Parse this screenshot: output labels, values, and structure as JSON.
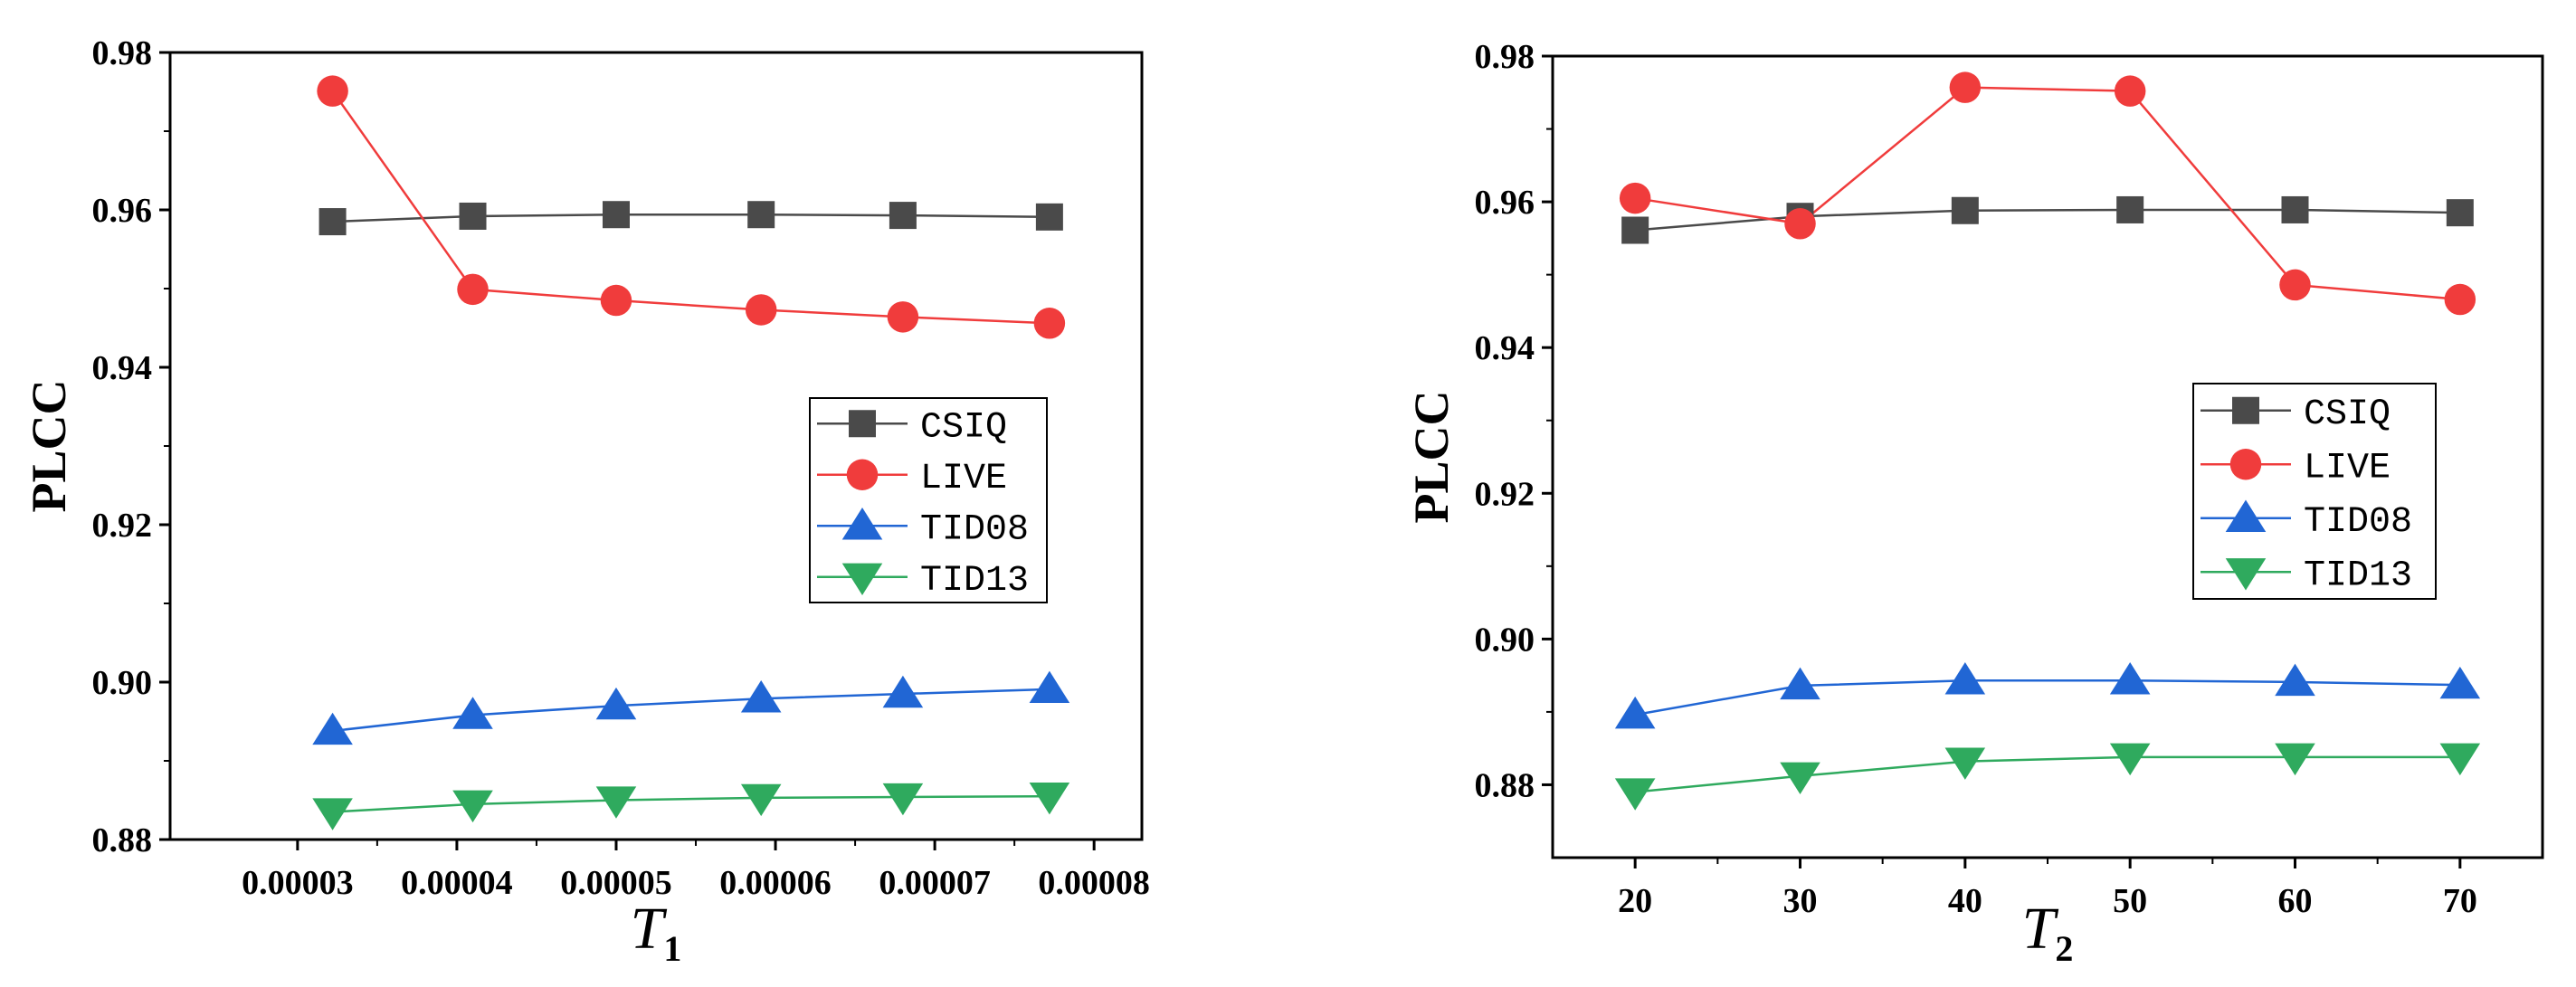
{
  "colors": {
    "CSIQ": "#4a4a4a",
    "LIVE": "#f03c3c",
    "TID08": "#2166d4",
    "TID13": "#2faa5e"
  },
  "chart_data": [
    {
      "type": "line",
      "title": "",
      "xlabel": "T",
      "xlabel_sub": "1",
      "ylabel": "PLCC",
      "xlim": [
        2.2e-05,
        8.3e-05
      ],
      "ylim": [
        0.88,
        0.98
      ],
      "xticks": [
        3e-05,
        4e-05,
        5e-05,
        6e-05,
        7e-05,
        8e-05
      ],
      "xtick_labels": [
        "0.00003",
        "0.00004",
        "0.00005",
        "0.00006",
        "0.00007",
        "0.00008"
      ],
      "yticks": [
        0.88,
        0.9,
        0.92,
        0.94,
        0.96,
        0.98
      ],
      "ytick_labels": [
        "0.88",
        "0.90",
        "0.92",
        "0.94",
        "0.96",
        "0.98"
      ],
      "legend_position": "center-right",
      "x": [
        3.22e-05,
        4.1e-05,
        5e-05,
        5.91e-05,
        6.8e-05,
        7.72e-05
      ],
      "series": [
        {
          "name": "CSIQ",
          "marker": "square",
          "values": [
            0.9585,
            0.9592,
            0.9594,
            0.9594,
            0.9593,
            0.9591
          ]
        },
        {
          "name": "LIVE",
          "marker": "circle",
          "values": [
            0.9751,
            0.9499,
            0.9485,
            0.9473,
            0.9464,
            0.9456
          ]
        },
        {
          "name": "TID08",
          "marker": "triangle-up",
          "values": [
            0.8938,
            0.8958,
            0.897,
            0.8979,
            0.8985,
            0.8991
          ]
        },
        {
          "name": "TID13",
          "marker": "triangle-down",
          "values": [
            0.8835,
            0.8845,
            0.885,
            0.8853,
            0.8854,
            0.8855
          ]
        }
      ]
    },
    {
      "type": "line",
      "title": "",
      "xlabel": "T",
      "xlabel_sub": "2",
      "ylabel": "PLCC",
      "xlim": [
        15,
        75
      ],
      "ylim": [
        0.87,
        0.98
      ],
      "xticks": [
        20,
        30,
        40,
        50,
        60,
        70
      ],
      "xtick_labels": [
        "20",
        "30",
        "40",
        "50",
        "60",
        "70"
      ],
      "yticks": [
        0.88,
        0.9,
        0.92,
        0.94,
        0.96,
        0.98
      ],
      "ytick_labels": [
        "0.88",
        "0.90",
        "0.92",
        "0.94",
        "0.96",
        "0.98"
      ],
      "legend_position": "center-right",
      "x": [
        20,
        30,
        40,
        50,
        60,
        70
      ],
      "series": [
        {
          "name": "CSIQ",
          "marker": "square",
          "values": [
            0.9561,
            0.958,
            0.9588,
            0.9589,
            0.9589,
            0.9585
          ]
        },
        {
          "name": "LIVE",
          "marker": "circle",
          "values": [
            0.9605,
            0.957,
            0.9757,
            0.9752,
            0.9486,
            0.9466
          ]
        },
        {
          "name": "TID08",
          "marker": "triangle-up",
          "values": [
            0.8896,
            0.8936,
            0.8943,
            0.8943,
            0.8941,
            0.8937
          ]
        },
        {
          "name": "TID13",
          "marker": "triangle-down",
          "values": [
            0.879,
            0.8812,
            0.8832,
            0.8838,
            0.8838,
            0.8838
          ]
        }
      ]
    }
  ]
}
